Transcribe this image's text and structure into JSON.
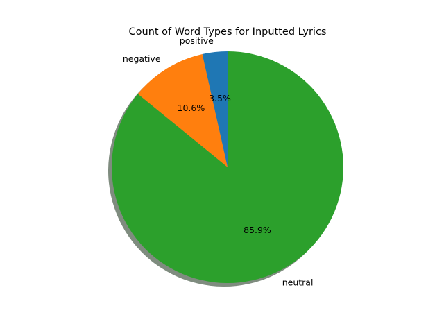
{
  "chart_data": {
    "type": "pie",
    "title": "Count of Word Types for Inputted Lyrics",
    "start_angle_deg": 90,
    "direction": "counterclockwise",
    "shadow": true,
    "slices": [
      {
        "label": "positive",
        "value": 3.5,
        "pct_label": "3.5%",
        "color": "#1f77b4"
      },
      {
        "label": "negative",
        "value": 10.6,
        "pct_label": "10.6%",
        "color": "#ff7f0e"
      },
      {
        "label": "neutral",
        "value": 85.9,
        "pct_label": "85.9%",
        "color": "#2ca02c"
      }
    ],
    "shadow_color": "#7f8c7f"
  }
}
